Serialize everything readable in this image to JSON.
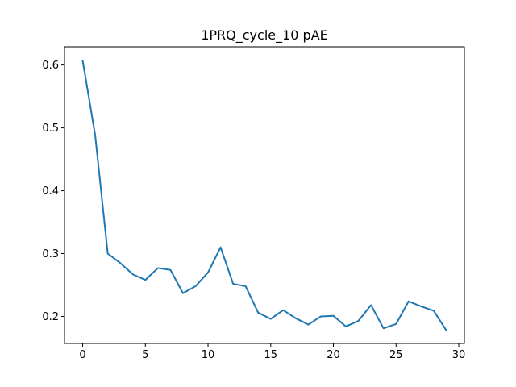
{
  "chart_data": {
    "type": "line",
    "title": "1PRQ_cycle_10 pAE",
    "xlabel": "",
    "ylabel": "",
    "xlim": [
      -1.45,
      30.45
    ],
    "ylim": [
      0.157,
      0.629
    ],
    "xticks": [
      0,
      5,
      10,
      15,
      20,
      25,
      30
    ],
    "xtick_labels": [
      "0",
      "5",
      "10",
      "15",
      "20",
      "25",
      "30"
    ],
    "yticks": [
      0.2,
      0.3,
      0.4,
      0.5,
      0.6
    ],
    "ytick_labels": [
      "0.2",
      "0.3",
      "0.4",
      "0.5",
      "0.6"
    ],
    "grid": false,
    "series": [
      {
        "color": "#1f77b4",
        "x": [
          0,
          1,
          2,
          3,
          4,
          5,
          6,
          7,
          8,
          9,
          10,
          11,
          12,
          13,
          14,
          15,
          16,
          17,
          18,
          19,
          20,
          21,
          22,
          23,
          24,
          25,
          26,
          27,
          28,
          29
        ],
        "values": [
          0.607,
          0.488,
          0.3,
          0.285,
          0.267,
          0.258,
          0.277,
          0.274,
          0.237,
          0.248,
          0.27,
          0.31,
          0.252,
          0.248,
          0.206,
          0.196,
          0.21,
          0.197,
          0.187,
          0.2,
          0.201,
          0.184,
          0.193,
          0.218,
          0.181,
          0.188,
          0.224,
          0.216,
          0.209,
          0.178
        ]
      }
    ]
  }
}
